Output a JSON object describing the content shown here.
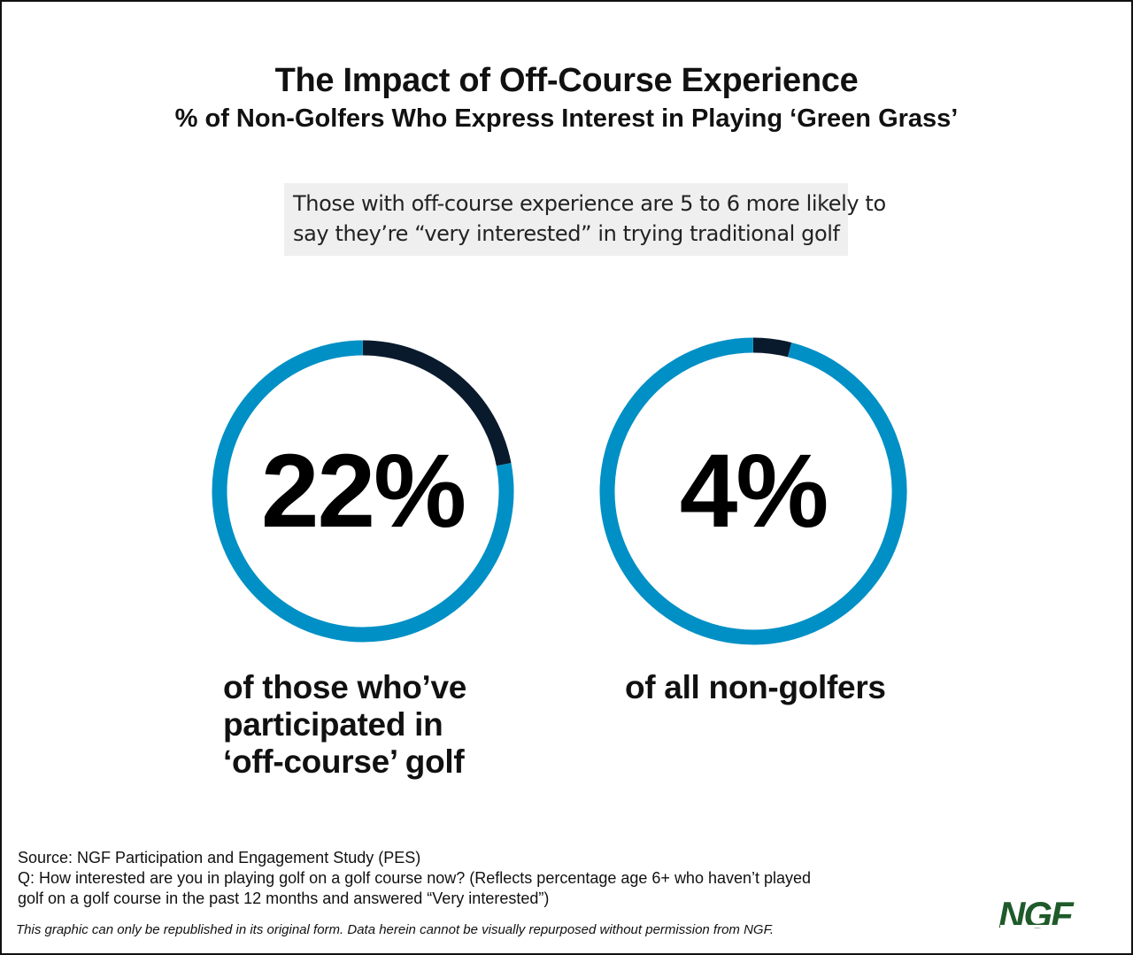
{
  "title": "The Impact of Off-Course Experience",
  "subtitle": "% of Non-Golfers Who Express Interest in Playing ‘Green Grass’",
  "callout": {
    "line1": "Those with off-course experience are 5 to 6 more likely to",
    "line2": "say they’re “very interested” in trying traditional golf"
  },
  "colors": {
    "highlight": "#0a1a2d",
    "remainder": "#0090c5",
    "callout_bg": "#efefef",
    "logo": "#1e5a2a"
  },
  "chart_data": [
    {
      "type": "pie",
      "variant": "donut",
      "value": 22,
      "label": "22%",
      "caption_lines": [
        "of those who’ve",
        "participated in",
        "‘off-course’ golf"
      ]
    },
    {
      "type": "pie",
      "variant": "donut",
      "value": 4,
      "label": "4%",
      "caption_lines": [
        "of all non-golfers"
      ]
    }
  ],
  "notes": {
    "source": "Source: NGF Participation and Engagement Study (PES)",
    "question_line1": "Q: How interested are you in playing golf on a golf course now? (Reflects percentage age 6+ who haven’t played",
    "question_line2": "golf on a golf course in the past 12 months and answered “Very interested”)"
  },
  "disclaimer": "This graphic can only be republished in its original form. Data herein cannot be visually repurposed without permission from NGF.",
  "logo_text": "NGF"
}
